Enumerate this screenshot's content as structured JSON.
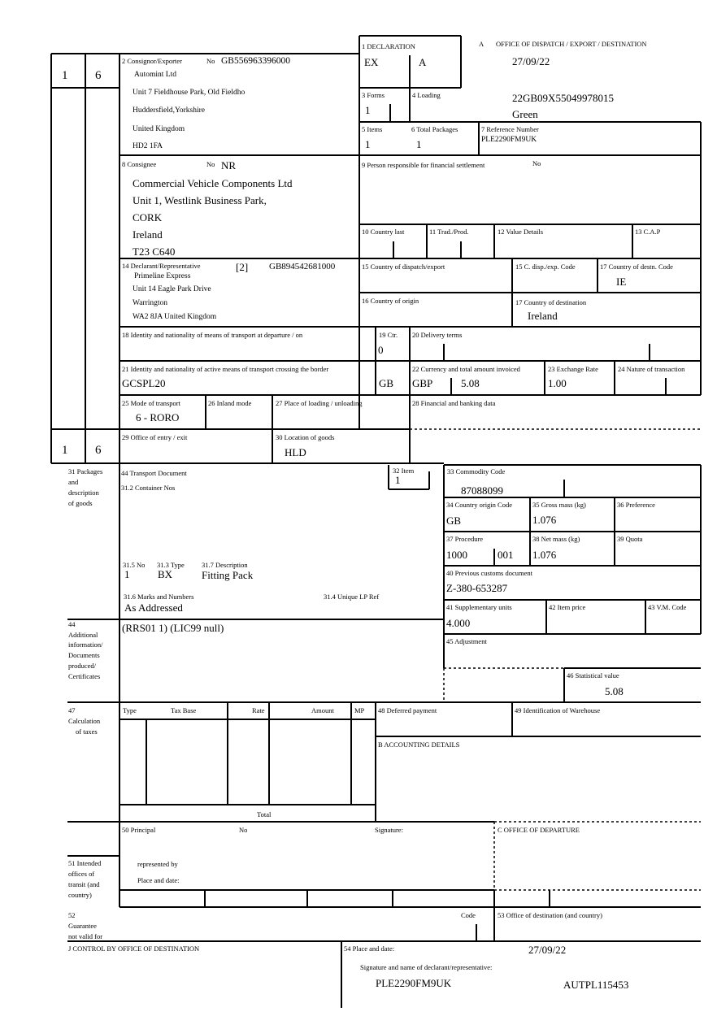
{
  "left_column": {
    "top_a": "1",
    "top_b": "6",
    "bottom_a": "1",
    "bottom_b": "6"
  },
  "box1": {
    "label": "1 DECLARATION",
    "value_a": "EX",
    "value_b": "A"
  },
  "office_a": {
    "label": "A",
    "title": "OFFICE OF DISPATCH / EXPORT / DESTINATION",
    "date": "27/09/22",
    "mrn": "22GB09X55049978015",
    "route": "Green"
  },
  "box2": {
    "label": "2 Consignor/Exporter",
    "no_label": "No",
    "no": "GB556963396000",
    "lines": [
      "Automint Ltd",
      "Unit 7 Fieldhouse Park, Old Fieldho",
      "Huddersfield,Yorkshire",
      "United Kingdom",
      "HD2 1FA"
    ]
  },
  "box3": {
    "label": "3 Forms",
    "value": "1"
  },
  "box4": {
    "label": "4 Loading"
  },
  "box5": {
    "label": "5 Items",
    "value": "1"
  },
  "box6": {
    "label": "6 Total Packages",
    "value": "1"
  },
  "box7": {
    "label": "7 Reference Number",
    "value": "PLE2290FM9UK"
  },
  "box8": {
    "label": "8 Consignee",
    "no_label": "No",
    "no": "NR",
    "lines": [
      "Commercial Vehicle Components Ltd",
      "Unit 1, Westlink Business Park,",
      "CORK",
      "Ireland",
      "T23 C640"
    ]
  },
  "box9": {
    "label": "9 Person responsible for financial settlement",
    "no_label": "No"
  },
  "box10": {
    "label": "10 Country last"
  },
  "box11": {
    "label": "11 Trad./Prod."
  },
  "box12": {
    "label": "12 Value Details"
  },
  "box13": {
    "label": "13 C.A.P"
  },
  "box14": {
    "label": "14 Declarant/Representative",
    "code": "[2]",
    "no": "GB894542681000",
    "lines": [
      "Primeline Express",
      "Unit 14 Eagle Park Drive",
      "Warrington",
      "WA2 8JA United Kingdom"
    ]
  },
  "box15": {
    "label": "15 Country of dispatch/export"
  },
  "box15c": {
    "label": "15 C. disp./exp. Code"
  },
  "box17c": {
    "label": "17 Country of destn. Code",
    "value": "IE"
  },
  "box16": {
    "label": "16 Country of origin"
  },
  "box17": {
    "label": "17 Country of destination",
    "value": "Ireland"
  },
  "box18": {
    "label": "18 Identity and nationality of means of transport at departure / on"
  },
  "box19": {
    "label": "19 Ctr.",
    "value": "0"
  },
  "box20": {
    "label": "20 Delivery terms"
  },
  "box21": {
    "label": "21 Identity and nationality of active means of transport crossing the border",
    "value": "GCSPL20",
    "nationality": "GB"
  },
  "box22": {
    "label": "22 Currency and total amount invoiced",
    "currency": "GBP",
    "amount": "5.08"
  },
  "box23": {
    "label": "23 Exchange Rate",
    "value": "1.00"
  },
  "box24": {
    "label": "24 Nature of transaction"
  },
  "box25": {
    "label": "25 Mode of transport",
    "value": "6 - RORO"
  },
  "box26": {
    "label": "26 Inland mode"
  },
  "box27": {
    "label": "27 Place of loading / unloading"
  },
  "box28": {
    "label": "28 Financial and banking data"
  },
  "box29": {
    "label": "29 Office of entry / exit"
  },
  "box30": {
    "label": "30 Location of goods",
    "value": "HLD"
  },
  "box31": {
    "side_label": [
      "31 Packages",
      "and",
      "description",
      "of goods"
    ],
    "transport_doc_label": "44 Transport Document",
    "container_label": "31.2 Container Nos",
    "no_label": "31.5 No",
    "no": "1",
    "type_label": "31.3 Type",
    "type": "BX",
    "desc_label": "31.7 Description",
    "desc": "Fitting Pack",
    "marks_label": "31.6 Marks and Numbers",
    "marks": "As Addressed",
    "lp_label": "31.4 Unique LP Ref"
  },
  "box32": {
    "label": "32 Item",
    "value": "1"
  },
  "box33": {
    "label": "33 Commodity Code",
    "value": "87088099"
  },
  "box34": {
    "label": "34 Country origin Code",
    "value": "GB"
  },
  "box35": {
    "label": "35 Gross mass (kg)",
    "value": "1.076"
  },
  "box36": {
    "label": "36 Preference"
  },
  "box37": {
    "label": "37 Procedure",
    "value_a": "1000",
    "value_b": "001"
  },
  "box38": {
    "label": "38 Net mass (kg)",
    "value": "1.076"
  },
  "box39": {
    "label": "39 Quota"
  },
  "box40": {
    "label": "40 Previous customs document",
    "value": "Z-380-653287"
  },
  "box41": {
    "label": "41 Supplementary units",
    "value": "4.000"
  },
  "box42": {
    "label": "42 Item price"
  },
  "box43": {
    "label": "43 V.M. Code"
  },
  "box44": {
    "side_label": [
      "44",
      "Additional",
      "information/",
      "Documents",
      "produced/",
      "Certificates"
    ],
    "value": "(RRS01 1) (LIC99 null)"
  },
  "box45": {
    "label": "45 Adjustment"
  },
  "box46": {
    "label": "46 Statistical value",
    "value": "5.08"
  },
  "box47": {
    "side_label": [
      "47",
      "Calculation",
      "of taxes"
    ],
    "columns": [
      "Type",
      "Tax Base",
      "Rate",
      "Amount",
      "MP"
    ],
    "total_label": "Total"
  },
  "box48": {
    "label": "48 Deferred payment"
  },
  "box49": {
    "label": "49 Identification of Warehouse"
  },
  "box_b": {
    "label": "B ACCOUNTING DETAILS"
  },
  "box50": {
    "label": "50 Principal",
    "no_label": "No",
    "signature_label": "Signature:",
    "represented_label": "represented by",
    "place_label": "Place and date:"
  },
  "box51": {
    "side_label": [
      "51 Intended",
      "offices of",
      "transit (and",
      "country)"
    ]
  },
  "box_c": {
    "label": "C OFFICE OF DEPARTURE"
  },
  "box52": {
    "side_label": [
      "52",
      "Guarantee",
      "not valid for"
    ],
    "code_label": "Code"
  },
  "box53": {
    "label": "53 Office of destination (and country)"
  },
  "box_j": {
    "label": "J CONTROL BY OFFICE OF DESTINATION"
  },
  "box54": {
    "label": "54 Place and date:",
    "date": "27/09/22",
    "signature_label": "Signature and name of declarant/representative:",
    "name": "PLE2290FM9UK",
    "ref": "AUTPL115453"
  }
}
